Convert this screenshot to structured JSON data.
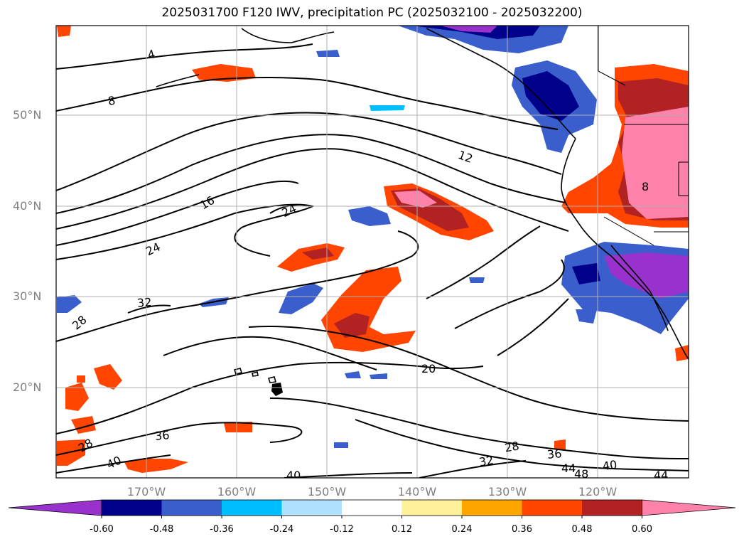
{
  "title": "2025031700 F120 IWV, precipitation PC (2025032100 - 2025032200)",
  "lat_labels": [
    "50°N",
    "40°N",
    "30°N",
    "20°N"
  ],
  "lon_labels": [
    "170°W",
    "160°W",
    "150°W",
    "140°W",
    "130°W",
    "120°W"
  ],
  "contour_labels": [
    "4",
    "8",
    "12",
    "16",
    "24",
    "24",
    "32",
    "28",
    "20",
    "36",
    "40",
    "28",
    "32",
    "36",
    "44",
    "48",
    "40",
    "44",
    "40",
    "28",
    "8"
  ],
  "colorbar": {
    "ticks": [
      "-0.60",
      "-0.48",
      "-0.36",
      "-0.24",
      "-0.12",
      "0.12",
      "0.24",
      "0.36",
      "0.48",
      "0.60"
    ],
    "colors": [
      "#9932cc",
      "#00008b",
      "#3a5fcd",
      "#00bfff",
      "#b0e2ff",
      "#ffffff",
      "#fff09a",
      "#ffa500",
      "#ff4500",
      "#b22222",
      "#ff82ab"
    ]
  }
}
